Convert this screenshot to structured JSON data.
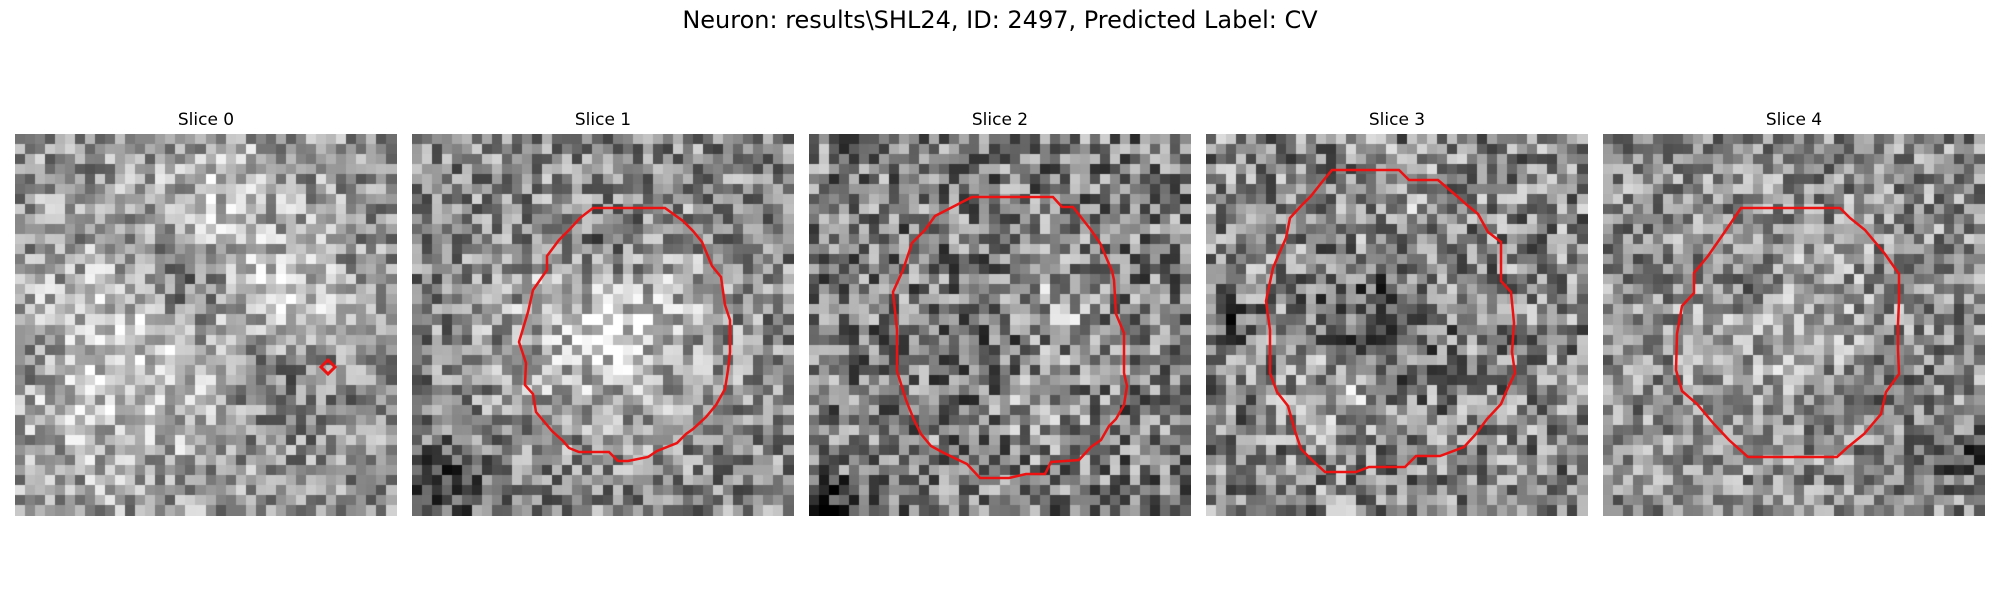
{
  "figure": {
    "title": "Neuron: results\\SHL24, ID: 2497, Predicted Label: CV"
  },
  "panels": [
    {
      "title": "Slice 0",
      "contour_color": "#ee1111"
    },
    {
      "title": "Slice 1",
      "contour_color": "#ee1111"
    },
    {
      "title": "Slice 2",
      "contour_color": "#ee1111"
    },
    {
      "title": "Slice 3",
      "contour_color": "#ee1111"
    },
    {
      "title": "Slice 4",
      "contour_color": "#ee1111"
    }
  ],
  "colormap": "gray"
}
